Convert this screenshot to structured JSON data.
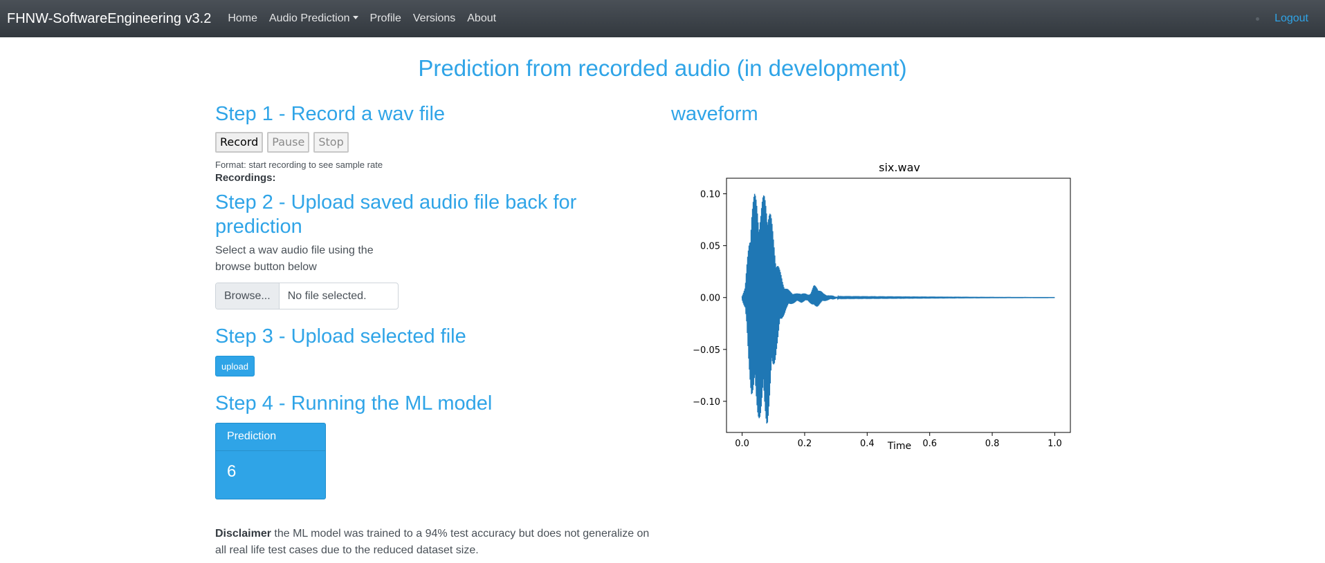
{
  "navbar": {
    "brand": "FHNW-SoftwareEngineering v3.2",
    "items": [
      "Home",
      "Audio Prediction",
      "Profile",
      "Versions",
      "About"
    ],
    "logout": "Logout"
  },
  "page": {
    "title": "Prediction from recorded audio (in development)"
  },
  "step1": {
    "title": "Step 1 - Record a wav file",
    "buttons": [
      "Record",
      "Pause",
      "Stop"
    ],
    "format": "Format: start recording to see sample rate",
    "recordings_label": "Recordings:"
  },
  "step2": {
    "title": "Step 2 - Upload saved audio file back for prediction",
    "description": "Select a wav audio file using the browse button below",
    "browse": "Browse...",
    "file_status": "No file selected."
  },
  "step3": {
    "title": "Step 3 - Upload selected file",
    "upload": "upload"
  },
  "step4": {
    "title": "Step 4 - Running the ML model",
    "prediction_label": "Prediction",
    "prediction_value": "6"
  },
  "disclaimer": {
    "bold": "Disclaimer",
    "text": " the ML model was trained to a 94% test accuracy but does not generalize on all real life test cases due to the reduced dataset size."
  },
  "waveform": {
    "heading": "waveform"
  },
  "chart_data": {
    "type": "line",
    "title": "six.wav",
    "xlabel": "Time",
    "ylabel": "",
    "xlim": [
      -0.05,
      1.05
    ],
    "ylim": [
      -0.13,
      0.115
    ],
    "xticks": [
      "0.0",
      "0.2",
      "0.4",
      "0.6",
      "0.8",
      "1.0"
    ],
    "yticks": [
      "−0.10",
      "−0.05",
      "0.00",
      "0.05",
      "0.10"
    ],
    "color": "#1f77b4",
    "envelope": {
      "t": [
        0.0,
        0.01,
        0.02,
        0.03,
        0.04,
        0.05,
        0.06,
        0.07,
        0.08,
        0.09,
        0.1,
        0.11,
        0.12,
        0.13,
        0.14,
        0.15,
        0.16,
        0.17,
        0.18,
        0.19,
        0.2,
        0.21,
        0.22,
        0.23,
        0.24,
        0.25,
        0.26,
        0.27,
        0.28,
        0.29,
        0.3,
        0.31,
        1.0
      ],
      "max": [
        0.002,
        0.01,
        0.05,
        0.095,
        0.1,
        0.095,
        0.09,
        0.1,
        0.105,
        0.085,
        0.06,
        0.04,
        0.027,
        0.016,
        0.01,
        0.007,
        0.005,
        0.004,
        0.004,
        0.005,
        0.004,
        0.003,
        0.005,
        0.012,
        0.011,
        0.007,
        0.004,
        0.003,
        0.002,
        0.002,
        0.001,
        0.0005,
        0.0
      ],
      "min": [
        -0.002,
        -0.012,
        -0.06,
        -0.095,
        -0.11,
        -0.115,
        -0.118,
        -0.12,
        -0.123,
        -0.1,
        -0.075,
        -0.05,
        -0.032,
        -0.02,
        -0.012,
        -0.008,
        -0.006,
        -0.005,
        -0.004,
        -0.005,
        -0.004,
        -0.003,
        -0.006,
        -0.01,
        -0.009,
        -0.006,
        -0.004,
        -0.003,
        -0.002,
        -0.002,
        -0.001,
        -0.0005,
        0.0
      ]
    }
  }
}
